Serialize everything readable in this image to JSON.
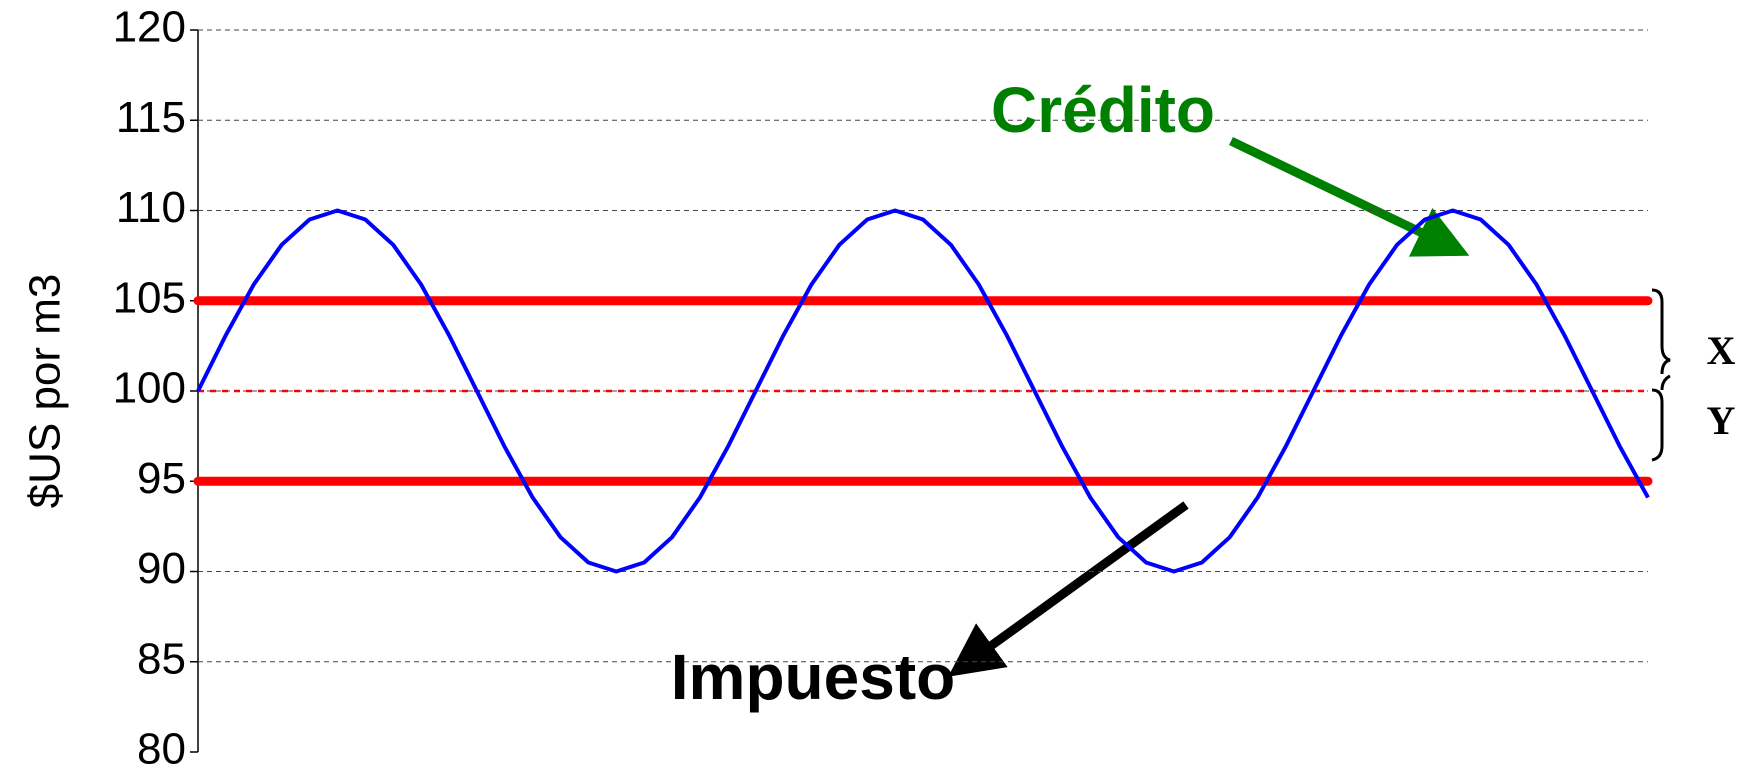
{
  "chart_data": {
    "type": "line",
    "y_label": "$US por m3",
    "ylim": [
      80,
      120
    ],
    "yticks": [
      80,
      85,
      90,
      95,
      100,
      105,
      110,
      115,
      120
    ],
    "grid": true,
    "series": [
      {
        "color": "#0000ff",
        "values": [
          100,
          103.1,
          105.9,
          108.1,
          109.5,
          110,
          109.5,
          108.1,
          105.9,
          103.1,
          100,
          96.9,
          94.1,
          91.9,
          90.5,
          90,
          90.5,
          91.9,
          94.1,
          96.9,
          100,
          103.1,
          105.9,
          108.1,
          109.5,
          110,
          109.5,
          108.1,
          105.9,
          103.1,
          100,
          96.9,
          94.1,
          91.9,
          90.5,
          90,
          90.5,
          91.9,
          94.1,
          96.9,
          100,
          103.1,
          105.9,
          108.1,
          109.5,
          110,
          109.5,
          108.1,
          105.9,
          103.1,
          100,
          96.9,
          94.1
        ]
      }
    ],
    "reference_lines": [
      {
        "value": 105,
        "color": "#ff0000",
        "style": "solid"
      },
      {
        "value": 95,
        "color": "#ff0000",
        "style": "solid"
      },
      {
        "value": 100,
        "color": "#ff0000",
        "style": "dotted"
      }
    ],
    "annotations": [
      {
        "text": "Crédito",
        "color": "#008000"
      },
      {
        "text": "Impuesto",
        "color": "#000000"
      }
    ],
    "brace_labels": [
      "X",
      "Y"
    ]
  }
}
